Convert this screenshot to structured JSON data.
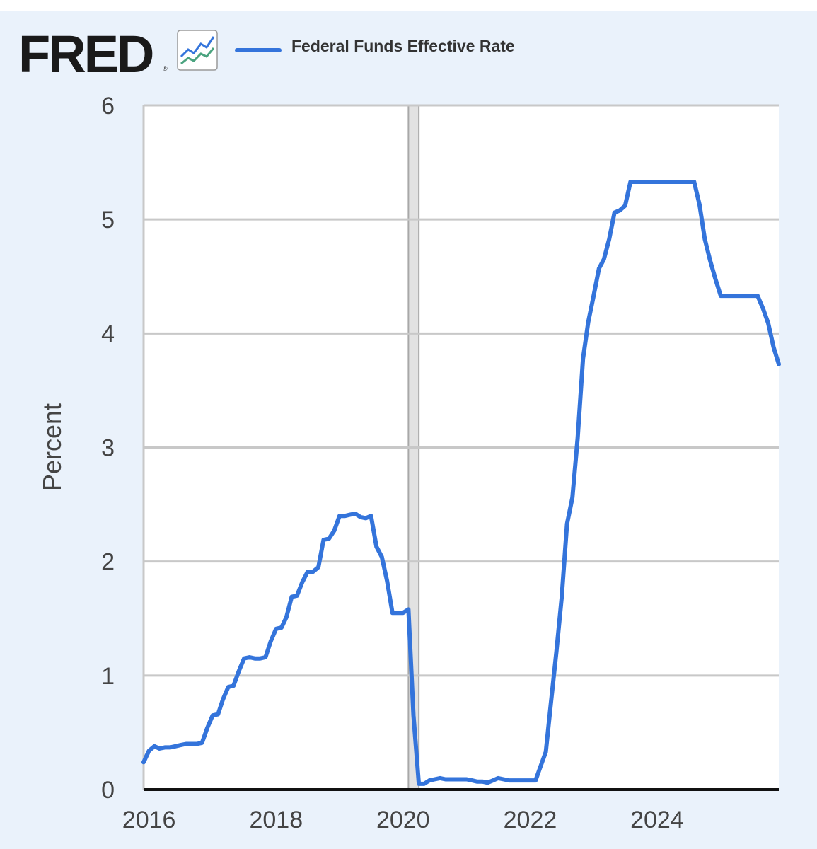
{
  "brand": {
    "logo_text": "FRED",
    "registered_mark": "®",
    "logo_icon": "trend-lines-icon"
  },
  "colors": {
    "background": "#eaf2fb",
    "plot_background": "#ffffff",
    "series": "#3474db",
    "grid": "#c8c8c8",
    "recession_shade": "#e2e2e2",
    "text": "#333333"
  },
  "chart_data": {
    "type": "line",
    "ylabel": "Percent",
    "ylim": [
      0,
      6
    ],
    "y_ticks": [
      "0",
      "1",
      "2",
      "3",
      "4",
      "5",
      "6"
    ],
    "xlim": [
      "2015-12-01",
      "2025-12-01"
    ],
    "x_ticks": [
      "2016",
      "2018",
      "2020",
      "2022",
      "2024"
    ],
    "grid": true,
    "legend_placement": "top-left",
    "recessions": [
      [
        "2020-02-01",
        "2020-04-01"
      ]
    ],
    "series": [
      {
        "name": "Federal Funds Effective Rate",
        "color": "#3474db",
        "points": [
          [
            "2015-12-01",
            0.24
          ],
          [
            "2016-01-01",
            0.34
          ],
          [
            "2016-02-01",
            0.38
          ],
          [
            "2016-03-01",
            0.36
          ],
          [
            "2016-04-01",
            0.37
          ],
          [
            "2016-05-01",
            0.37
          ],
          [
            "2016-06-01",
            0.38
          ],
          [
            "2016-07-01",
            0.39
          ],
          [
            "2016-08-01",
            0.4
          ],
          [
            "2016-09-01",
            0.4
          ],
          [
            "2016-10-01",
            0.4
          ],
          [
            "2016-11-01",
            0.41
          ],
          [
            "2016-12-01",
            0.54
          ],
          [
            "2017-01-01",
            0.65
          ],
          [
            "2017-02-01",
            0.66
          ],
          [
            "2017-03-01",
            0.79
          ],
          [
            "2017-04-01",
            0.9
          ],
          [
            "2017-05-01",
            0.91
          ],
          [
            "2017-06-01",
            1.04
          ],
          [
            "2017-07-01",
            1.15
          ],
          [
            "2017-08-01",
            1.16
          ],
          [
            "2017-09-01",
            1.15
          ],
          [
            "2017-10-01",
            1.15
          ],
          [
            "2017-11-01",
            1.16
          ],
          [
            "2017-12-01",
            1.3
          ],
          [
            "2018-01-01",
            1.41
          ],
          [
            "2018-02-01",
            1.42
          ],
          [
            "2018-03-01",
            1.51
          ],
          [
            "2018-04-01",
            1.69
          ],
          [
            "2018-05-01",
            1.7
          ],
          [
            "2018-06-01",
            1.82
          ],
          [
            "2018-07-01",
            1.91
          ],
          [
            "2018-08-01",
            1.91
          ],
          [
            "2018-09-01",
            1.95
          ],
          [
            "2018-10-01",
            2.19
          ],
          [
            "2018-11-01",
            2.2
          ],
          [
            "2018-12-01",
            2.27
          ],
          [
            "2019-01-01",
            2.4
          ],
          [
            "2019-02-01",
            2.4
          ],
          [
            "2019-03-01",
            2.41
          ],
          [
            "2019-04-01",
            2.42
          ],
          [
            "2019-05-01",
            2.39
          ],
          [
            "2019-06-01",
            2.38
          ],
          [
            "2019-07-01",
            2.4
          ],
          [
            "2019-08-01",
            2.13
          ],
          [
            "2019-09-01",
            2.04
          ],
          [
            "2019-10-01",
            1.83
          ],
          [
            "2019-11-01",
            1.55
          ],
          [
            "2019-12-01",
            1.55
          ],
          [
            "2020-01-01",
            1.55
          ],
          [
            "2020-02-01",
            1.58
          ],
          [
            "2020-03-01",
            0.65
          ],
          [
            "2020-04-01",
            0.05
          ],
          [
            "2020-05-01",
            0.05
          ],
          [
            "2020-06-01",
            0.08
          ],
          [
            "2020-07-01",
            0.09
          ],
          [
            "2020-08-01",
            0.1
          ],
          [
            "2020-09-01",
            0.09
          ],
          [
            "2020-10-01",
            0.09
          ],
          [
            "2020-11-01",
            0.09
          ],
          [
            "2020-12-01",
            0.09
          ],
          [
            "2021-01-01",
            0.09
          ],
          [
            "2021-02-01",
            0.08
          ],
          [
            "2021-03-01",
            0.07
          ],
          [
            "2021-04-01",
            0.07
          ],
          [
            "2021-05-01",
            0.06
          ],
          [
            "2021-06-01",
            0.08
          ],
          [
            "2021-07-01",
            0.1
          ],
          [
            "2021-08-01",
            0.09
          ],
          [
            "2021-09-01",
            0.08
          ],
          [
            "2021-10-01",
            0.08
          ],
          [
            "2021-11-01",
            0.08
          ],
          [
            "2021-12-01",
            0.08
          ],
          [
            "2022-01-01",
            0.08
          ],
          [
            "2022-02-01",
            0.08
          ],
          [
            "2022-03-01",
            0.2
          ],
          [
            "2022-04-01",
            0.33
          ],
          [
            "2022-05-01",
            0.77
          ],
          [
            "2022-06-01",
            1.21
          ],
          [
            "2022-07-01",
            1.68
          ],
          [
            "2022-08-01",
            2.33
          ],
          [
            "2022-09-01",
            2.56
          ],
          [
            "2022-10-01",
            3.08
          ],
          [
            "2022-11-01",
            3.78
          ],
          [
            "2022-12-01",
            4.1
          ],
          [
            "2023-01-01",
            4.33
          ],
          [
            "2023-02-01",
            4.57
          ],
          [
            "2023-03-01",
            4.65
          ],
          [
            "2023-04-01",
            4.83
          ],
          [
            "2023-05-01",
            5.06
          ],
          [
            "2023-06-01",
            5.08
          ],
          [
            "2023-07-01",
            5.12
          ],
          [
            "2023-08-01",
            5.33
          ],
          [
            "2023-09-01",
            5.33
          ],
          [
            "2023-10-01",
            5.33
          ],
          [
            "2023-11-01",
            5.33
          ],
          [
            "2023-12-01",
            5.33
          ],
          [
            "2024-01-01",
            5.33
          ],
          [
            "2024-02-01",
            5.33
          ],
          [
            "2024-03-01",
            5.33
          ],
          [
            "2024-04-01",
            5.33
          ],
          [
            "2024-05-01",
            5.33
          ],
          [
            "2024-06-01",
            5.33
          ],
          [
            "2024-07-01",
            5.33
          ],
          [
            "2024-08-01",
            5.33
          ],
          [
            "2024-09-01",
            5.13
          ],
          [
            "2024-10-01",
            4.83
          ],
          [
            "2024-11-01",
            4.64
          ],
          [
            "2024-12-01",
            4.48
          ],
          [
            "2025-01-01",
            4.33
          ],
          [
            "2025-02-01",
            4.33
          ],
          [
            "2025-03-01",
            4.33
          ],
          [
            "2025-04-01",
            4.33
          ],
          [
            "2025-05-01",
            4.33
          ],
          [
            "2025-06-01",
            4.33
          ],
          [
            "2025-07-01",
            4.33
          ],
          [
            "2025-08-01",
            4.33
          ],
          [
            "2025-09-01",
            4.22
          ],
          [
            "2025-10-01",
            4.09
          ],
          [
            "2025-11-01",
            3.88
          ],
          [
            "2025-12-01",
            3.73
          ]
        ]
      }
    ]
  }
}
